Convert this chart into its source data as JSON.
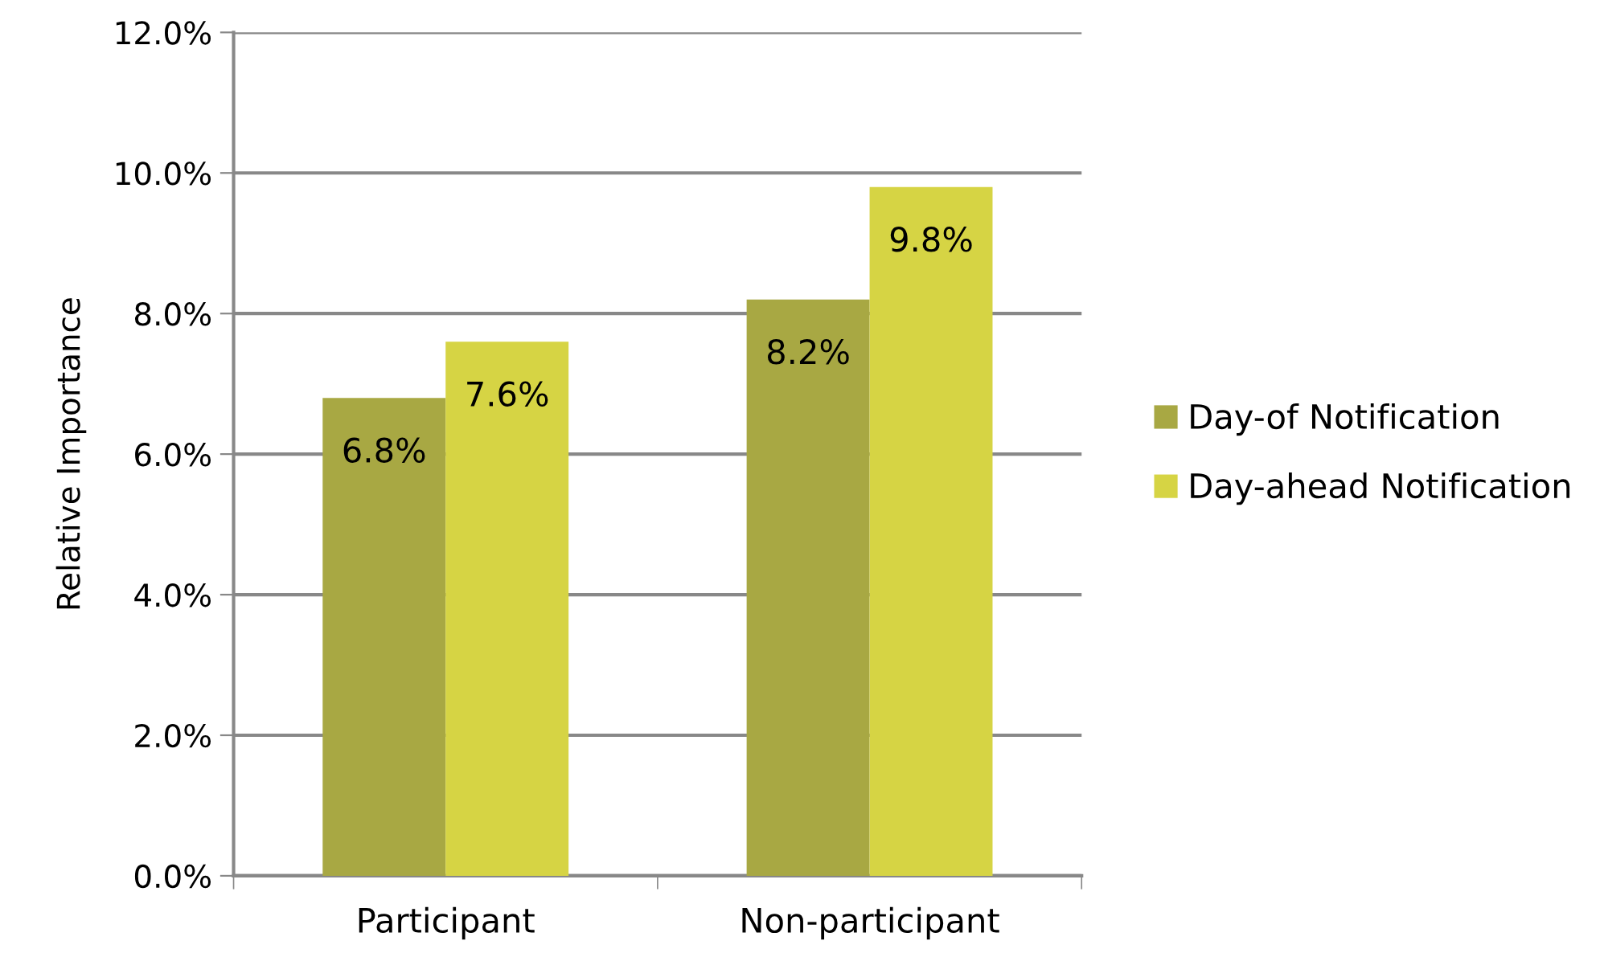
{
  "chart_data": {
    "type": "bar",
    "ylabel": "Relative Importance",
    "categories": [
      "Participant",
      "Non-participant"
    ],
    "series": [
      {
        "name": "Day-of Notification",
        "color": "#a8a843",
        "values": [
          6.8,
          8.2
        ],
        "value_labels": [
          "6.8%",
          "8.2%"
        ]
      },
      {
        "name": "Day-ahead Notification",
        "color": "#d6d444",
        "values": [
          7.6,
          9.8
        ],
        "value_labels": [
          "7.6%",
          "9.8%"
        ]
      }
    ],
    "ylim": [
      0,
      12
    ],
    "yticks": [
      {
        "value": 0,
        "label": "0.0%"
      },
      {
        "value": 2,
        "label": "2.0%"
      },
      {
        "value": 4,
        "label": "4.0%"
      },
      {
        "value": 6,
        "label": "6.0%"
      },
      {
        "value": 8,
        "label": "8.0%"
      },
      {
        "value": 10,
        "label": "10.0%"
      },
      {
        "value": 12,
        "label": "12.0%"
      }
    ],
    "grid": "y",
    "legend": "right"
  }
}
